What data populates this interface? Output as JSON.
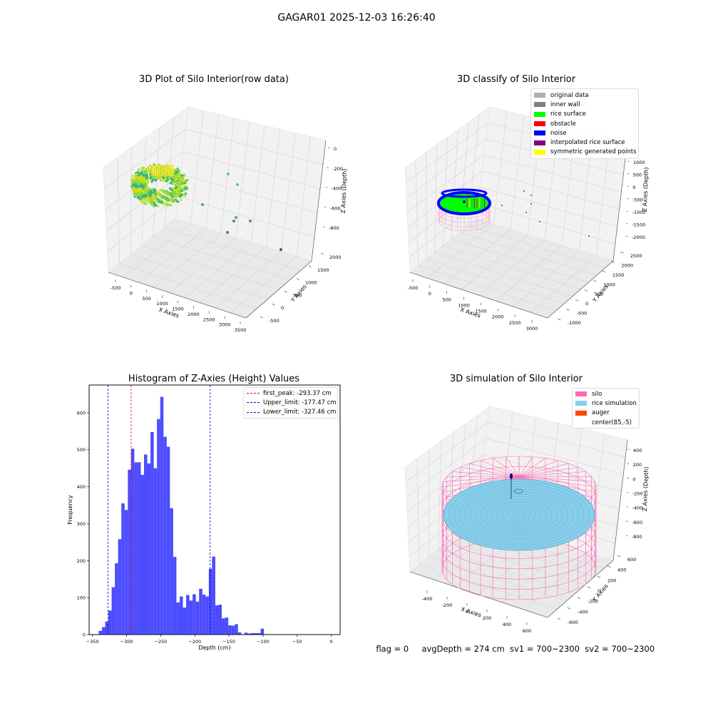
{
  "figure_title": "GAGAR01 2025-12-03 16:26:40",
  "footer": {
    "flag": "flag = 0",
    "avg_depth": "avgDepth = 274 cm",
    "sv1": "sv1 = 700~2300",
    "sv2": "sv2 = 700~2300"
  },
  "chart_data": [
    {
      "type": "scatter",
      "title": "3D Plot of Silo Interior(row data)",
      "xlabel": "X Axies",
      "ylabel": "Y Axies",
      "zlabel": "Z Axies (Depth)",
      "x_ticks": [
        "-500",
        "0",
        "500",
        "1000",
        "1500",
        "2000",
        "2500",
        "3000",
        "3500"
      ],
      "y_ticks": [
        "-500",
        "0",
        "500",
        "1000",
        "1500",
        "2000"
      ],
      "z_ticks": [
        "-800",
        "-600",
        "-400",
        "-200",
        "0"
      ],
      "grid": true,
      "colormap": "viridis",
      "description_points": "dense ring of points near origin plus scattered outliers"
    },
    {
      "type": "scatter",
      "title": "3D classify of Silo Interior",
      "xlabel": "X Axies",
      "ylabel": "Y Axies",
      "zlabel": "Z Axies (Depth)",
      "x_ticks": [
        "-500",
        "0",
        "500",
        "1000",
        "1500",
        "2000",
        "2500",
        "3000"
      ],
      "y_ticks": [
        "-1000",
        "-500",
        "0",
        "500",
        "1000",
        "1500",
        "2000",
        "2500"
      ],
      "z_ticks": [
        "-2000",
        "-1500",
        "-1000",
        "-500",
        "0",
        "500",
        "1000"
      ],
      "grid": true,
      "legend_position": "top-right",
      "legend": [
        {
          "label": "original data",
          "color": "#b0b0b0"
        },
        {
          "label": "inner wall",
          "color": "#808080"
        },
        {
          "label": "rice surface",
          "color": "#00ff00"
        },
        {
          "label": "obstacle",
          "color": "#ff0000"
        },
        {
          "label": "noise",
          "color": "#0000ff"
        },
        {
          "label": "interpolated rice surface",
          "color": "#800080"
        },
        {
          "label": "symmetric generated points",
          "color": "#ffff00"
        }
      ]
    },
    {
      "type": "bar",
      "title": "Histogram of Z-Axies (Height) Values",
      "xlabel": "Depth (cm)",
      "ylabel": "Frequency",
      "xlim": [
        -355,
        13
      ],
      "ylim": [
        0,
        675
      ],
      "x_ticks": [
        -350,
        -300,
        -250,
        -200,
        -150,
        -100,
        -50,
        0
      ],
      "y_ticks": [
        0,
        100,
        200,
        300,
        400,
        500,
        600
      ],
      "bar_color": "#4c4cff",
      "bin_edges_start": -341,
      "bin_width": 4.75,
      "values": [
        10,
        20,
        35,
        65,
        128,
        193,
        258,
        355,
        337,
        446,
        503,
        466,
        466,
        432,
        487,
        463,
        548,
        450,
        583,
        643,
        535,
        508,
        342,
        210,
        87,
        103,
        73,
        107,
        92,
        109,
        89,
        124,
        108,
        103,
        178,
        211,
        79,
        81,
        44,
        46,
        25,
        24,
        28,
        6,
        0,
        5,
        3,
        4,
        4,
        4,
        16
      ],
      "lines": [
        {
          "label": "first_peak: -293.37 cm",
          "x": -293.37,
          "color": "#ff0000"
        },
        {
          "label": "Upper_limit: -177.47 cm",
          "x": -177.47,
          "color": "#0000cc"
        },
        {
          "label": "Lower_limit: -327.46 cm",
          "x": -327.46,
          "color": "#0000cc"
        }
      ],
      "legend_position": "top-right"
    },
    {
      "type": "scatter",
      "title": "3D simulation of Silo Interior",
      "xlabel": "X Axies",
      "ylabel": "Y Axies",
      "zlabel": "Z Axies (Depth)",
      "x_ticks": [
        "-400",
        "-200",
        "0",
        "200",
        "400",
        "600"
      ],
      "y_ticks": [
        "-600",
        "-400",
        "-200",
        "0",
        "200",
        "400",
        "600"
      ],
      "z_ticks": [
        "-800",
        "-600",
        "-400",
        "-200",
        "0",
        "200",
        "400"
      ],
      "grid": true,
      "legend_position": "top-right",
      "legend": [
        {
          "label": "silo",
          "color": "#ff69b4"
        },
        {
          "label": "rice simulation",
          "color": "#87ceeb"
        },
        {
          "label": "auger",
          "color": "#ff4500"
        },
        {
          "label": "center(85,-5)",
          "color": ""
        }
      ]
    }
  ]
}
